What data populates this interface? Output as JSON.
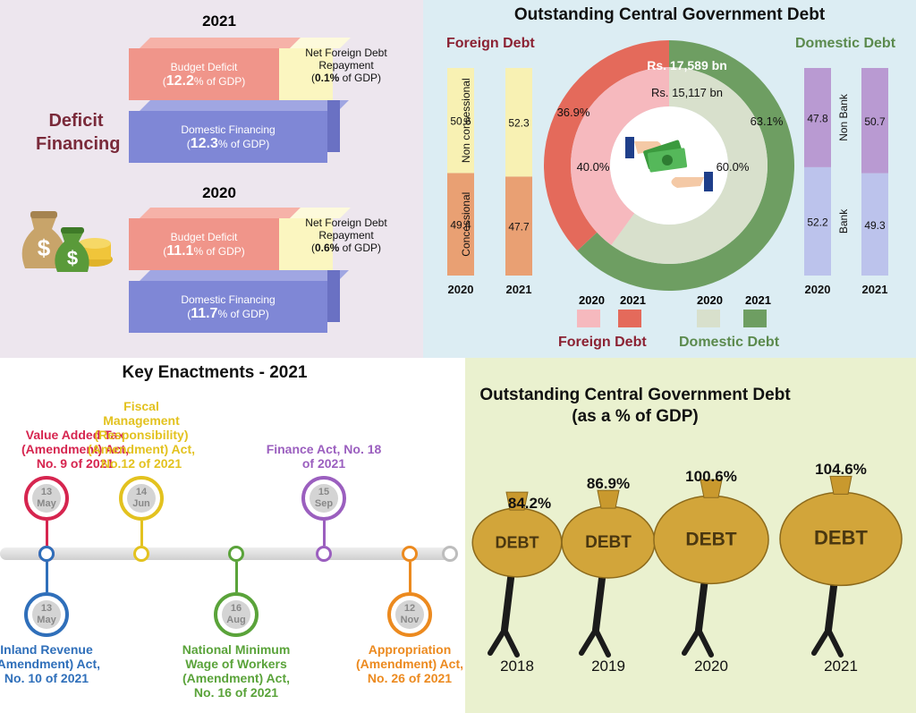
{
  "deficit": {
    "side_label": [
      "Deficit",
      "Financing"
    ],
    "years": [
      {
        "year": "2021",
        "budget_label": "Budget Deficit",
        "budget_value": "12.2",
        "budget_unit": "% of GDP)",
        "nfd_label": [
          "Net Foreign Debt",
          "Repayment"
        ],
        "nfd_value": "0.1%",
        "nfd_unit": " of GDP)",
        "dom_label": "Domestic Financing",
        "dom_value": "12.3",
        "dom_unit": "% of GDP)"
      },
      {
        "year": "2020",
        "budget_label": "Budget Deficit",
        "budget_value": "11.1",
        "budget_unit": "% of GDP)",
        "nfd_label": [
          "Net Foreign Debt",
          "Repayment"
        ],
        "nfd_value": "0.6%",
        "nfd_unit": " of GDP)",
        "dom_label": "Domestic Financing",
        "dom_value": "11.7",
        "dom_unit": "% of GDP)"
      }
    ],
    "colors": {
      "pink": "#f0958a",
      "yellow": "#fbf6c0",
      "blue": "#7f87d6",
      "label": "#7a2a3a"
    }
  },
  "debt_composition": {
    "title": "Outstanding Central Government Debt",
    "foreign_label": "Foreign Debt",
    "domestic_label": "Domestic Debt",
    "outer_total": "Rs. 17,589 bn",
    "inner_total": "Rs. 15,117 bn",
    "legend": {
      "foreign_years": [
        "2020",
        "2021"
      ],
      "domestic_years": [
        "2020",
        "2021"
      ],
      "foreign_label": "Foreign Debt",
      "domestic_label": "Domestic Debt"
    }
  },
  "enactments": {
    "title": "Key Enactments - 2021",
    "top": [
      {
        "day": "13",
        "month": "May",
        "text": [
          "Value Added Tax",
          "(Amendment) Act,",
          "No. 9 of 2021"
        ],
        "color": "#d6254f"
      },
      {
        "day": "14",
        "month": "Jun",
        "text": [
          "Fiscal",
          "Management",
          "(Responsibility)",
          "(Amendment) Act,",
          "No.12 of 2021"
        ],
        "color": "#e3c21f"
      },
      {
        "day": "15",
        "month": "Sep",
        "text": [
          "Finance Act, No. 18",
          "of 2021"
        ],
        "color": "#9b5fbf"
      }
    ],
    "bottom": [
      {
        "day": "13",
        "month": "May",
        "text": [
          "Inland Revenue",
          "(Amendment) Act,",
          "No. 10 of 2021"
        ],
        "color": "#2f6fba"
      },
      {
        "day": "16",
        "month": "Aug",
        "text": [
          "National Minimum",
          "Wage of  Workers",
          "(Amendment) Act,",
          "No. 16 of 2021"
        ],
        "color": "#5aa33a"
      },
      {
        "day": "12",
        "month": "Nov",
        "text": [
          "Appropriation",
          "(Amendment) Act,",
          "No. 26 of 2021"
        ],
        "color": "#ec8a1f"
      }
    ]
  },
  "gdp": {
    "title": [
      "Outstanding Central Government Debt",
      "(as a % of GDP)"
    ],
    "bag_text": "DEBT"
  },
  "chart_data": [
    {
      "type": "bar",
      "title": "Foreign Debt",
      "categories": [
        "2020",
        "2021"
      ],
      "series": [
        {
          "name": "Concessional",
          "values": [
            49.4,
            47.7
          ]
        },
        {
          "name": "Non concessional",
          "values": [
            50.6,
            52.3
          ]
        }
      ],
      "stacked": true,
      "colors": [
        "#e9a073",
        "#f8f1b3"
      ]
    },
    {
      "type": "bar",
      "title": "Domestic Debt",
      "categories": [
        "2020",
        "2021"
      ],
      "series": [
        {
          "name": "Bank",
          "values": [
            52.2,
            49.3
          ]
        },
        {
          "name": "Non Bank",
          "values": [
            47.8,
            50.7
          ]
        }
      ],
      "stacked": true,
      "colors": [
        "#bcc3ec",
        "#b99ad2"
      ]
    },
    {
      "type": "pie",
      "donut": true,
      "categories": [
        "Foreign Debt",
        "Domestic Debt"
      ],
      "series": [
        {
          "name": "2021",
          "values": [
            36.9,
            63.1
          ],
          "labels": [
            "36.9%",
            "63.1%"
          ],
          "total_label": "Rs. 17,589 bn",
          "colors": [
            "#e46a5b",
            "#6e9e62"
          ]
        },
        {
          "name": "2020",
          "values": [
            40.0,
            60.0
          ],
          "labels": [
            "40.0%",
            "60.0%"
          ],
          "total_label": "Rs. 15,117 bn",
          "colors": [
            "#f6b9be",
            "#d8e0cc"
          ]
        }
      ]
    },
    {
      "type": "bar",
      "title": "Outstanding Central Government Debt (as a % of GDP)",
      "categories": [
        "2018",
        "2019",
        "2020",
        "2021"
      ],
      "values": [
        84.2,
        86.9,
        100.6,
        104.6
      ],
      "labels": [
        "84.2%",
        "86.9%",
        "100.6%",
        "104.6%"
      ]
    }
  ]
}
